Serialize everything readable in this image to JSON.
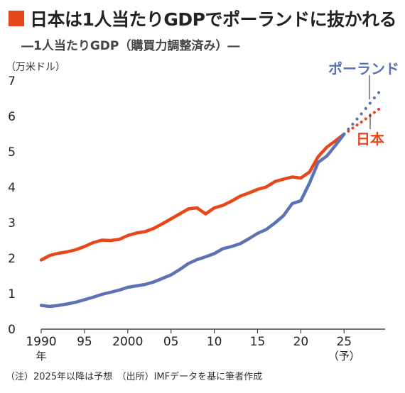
{
  "title": "日本は1人当たりGDPでポーランドに抜かれる",
  "subtitle": "―1人当たりGDP（購買力調整済み）―",
  "unit_label": "（万米ドル）",
  "footnote": "（注）2025年以降は予想　（出所）IMFデータを基に筆者作成",
  "colors": {
    "accent": "#e8471c",
    "japan": "#e8471c",
    "poland": "#5b73b5",
    "axis": "#444444",
    "text": "#222222"
  },
  "chart_data": {
    "type": "line",
    "title": "1人当たりGDP（購買力調整済み）",
    "ylabel": "万米ドル",
    "xlim": [
      1990,
      2029
    ],
    "ylim": [
      0,
      7
    ],
    "y_ticks": [
      0,
      1,
      2,
      3,
      4,
      5,
      6,
      7
    ],
    "x_ticks": [
      {
        "value": 1990,
        "label": "1990",
        "sub": "年"
      },
      {
        "value": 1995,
        "label": "95"
      },
      {
        "value": 2000,
        "label": "2000"
      },
      {
        "value": 2005,
        "label": "05"
      },
      {
        "value": 2010,
        "label": "10"
      },
      {
        "value": 2015,
        "label": "15"
      },
      {
        "value": 2020,
        "label": "20"
      },
      {
        "value": 2025,
        "label": "25",
        "sub": "（予）"
      }
    ],
    "forecast_from": 2025,
    "series": [
      {
        "name": "日本",
        "color": "#e8471c",
        "x": [
          1990,
          1991,
          1992,
          1993,
          1994,
          1995,
          1996,
          1997,
          1998,
          1999,
          2000,
          2001,
          2002,
          2003,
          2004,
          2005,
          2006,
          2007,
          2008,
          2009,
          2010,
          2011,
          2012,
          2013,
          2014,
          2015,
          2016,
          2017,
          2018,
          2019,
          2020,
          2021,
          2022,
          2023,
          2024,
          2025,
          2026,
          2027,
          2028,
          2029
        ],
        "values": [
          1.95,
          2.08,
          2.14,
          2.18,
          2.24,
          2.33,
          2.44,
          2.51,
          2.5,
          2.53,
          2.64,
          2.71,
          2.75,
          2.84,
          2.97,
          3.11,
          3.25,
          3.39,
          3.42,
          3.25,
          3.42,
          3.49,
          3.61,
          3.75,
          3.84,
          3.94,
          4.01,
          4.16,
          4.23,
          4.29,
          4.26,
          4.43,
          4.86,
          5.13,
          5.31,
          5.5,
          5.67,
          5.84,
          6.02,
          6.2
        ]
      },
      {
        "name": "ポーランド",
        "color": "#5b73b5",
        "x": [
          1990,
          1991,
          1992,
          1993,
          1994,
          1995,
          1996,
          1997,
          1998,
          1999,
          2000,
          2001,
          2002,
          2003,
          2004,
          2005,
          2006,
          2007,
          2008,
          2009,
          2010,
          2011,
          2012,
          2013,
          2014,
          2015,
          2016,
          2017,
          2018,
          2019,
          2020,
          2021,
          2022,
          2023,
          2024,
          2025,
          2026,
          2027,
          2028,
          2029
        ],
        "values": [
          0.67,
          0.64,
          0.67,
          0.71,
          0.76,
          0.83,
          0.9,
          0.98,
          1.04,
          1.1,
          1.18,
          1.22,
          1.26,
          1.33,
          1.43,
          1.53,
          1.68,
          1.85,
          1.96,
          2.04,
          2.13,
          2.27,
          2.33,
          2.41,
          2.55,
          2.7,
          2.81,
          2.99,
          3.2,
          3.54,
          3.62,
          4.12,
          4.7,
          4.88,
          5.18,
          5.5,
          5.78,
          6.07,
          6.37,
          6.67
        ]
      }
    ]
  }
}
